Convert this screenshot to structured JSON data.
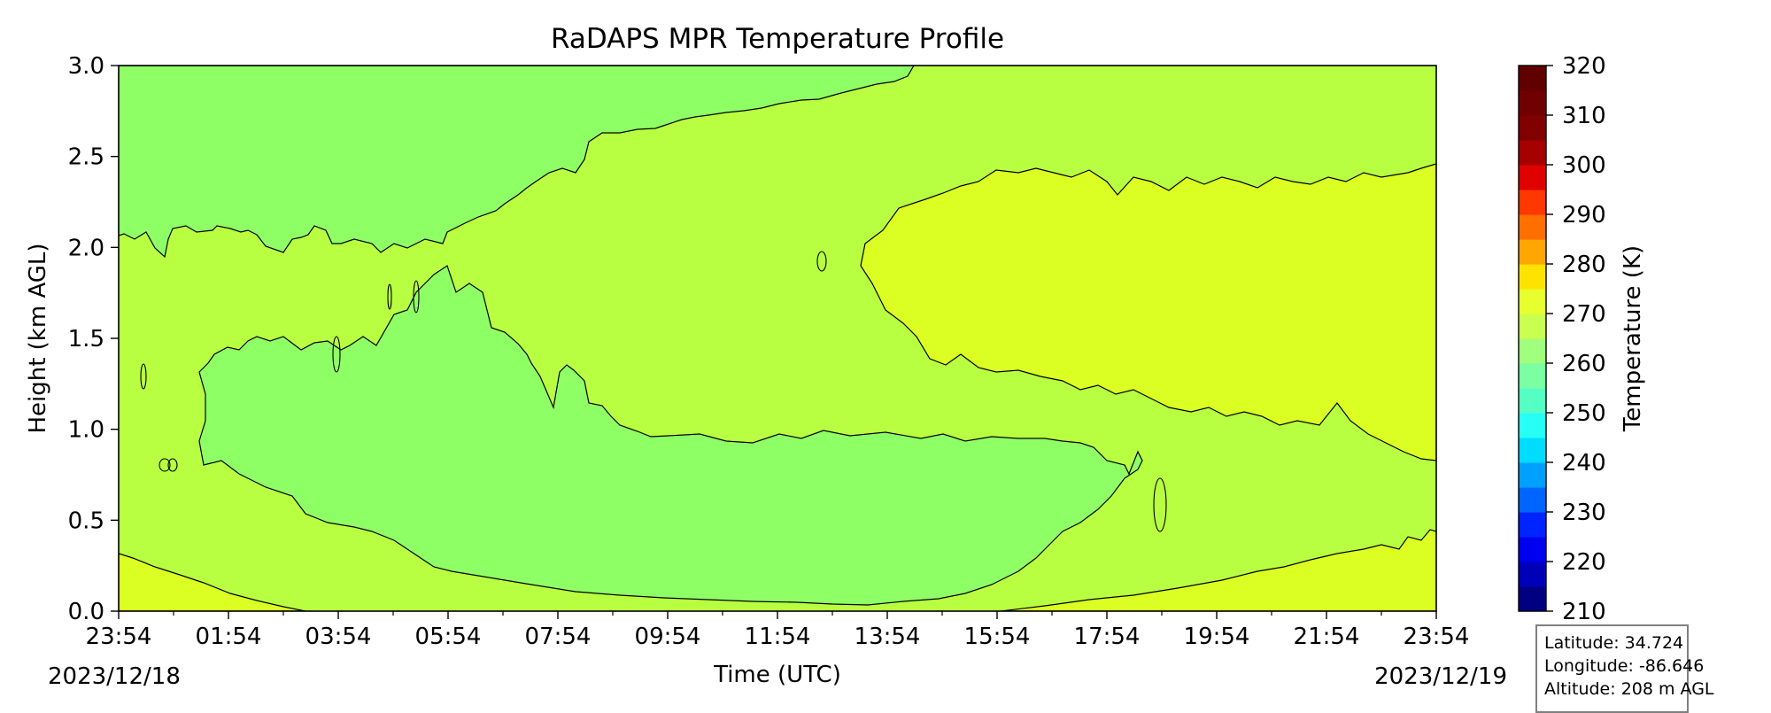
{
  "chart_data": {
    "type": "heatmap",
    "title": "RaDAPS MPR Temperature Profile",
    "xlabel": "Time (UTC)",
    "ylabel": "Height (km AGL)",
    "x_ticks": [
      "23:54",
      "01:54",
      "03:54",
      "05:54",
      "07:54",
      "09:54",
      "11:54",
      "13:54",
      "15:54",
      "17:54",
      "19:54",
      "21:54",
      "23:54"
    ],
    "x_start_date": "2023/12/18",
    "x_end_date": "2023/12/19",
    "y_ticks": [
      "0.0",
      "0.5",
      "1.0",
      "1.5",
      "2.0",
      "2.5",
      "3.0"
    ],
    "ylim": [
      0,
      3.0
    ],
    "colorbar": {
      "label": "Temperature (K)",
      "ticks": [
        "210",
        "220",
        "230",
        "240",
        "250",
        "260",
        "270",
        "280",
        "290",
        "300",
        "310",
        "320"
      ],
      "range": [
        210,
        320
      ],
      "level_step": 5,
      "level_colors": [
        "#000080",
        "#0000b8",
        "#0000f1",
        "#0024ff",
        "#0064ff",
        "#00a0ff",
        "#00dcfe",
        "#25fff5",
        "#55ffc3",
        "#7affa3",
        "#a0ff7d",
        "#c9ff50",
        "#e8ff2e",
        "#fee300",
        "#ffa700",
        "#ff6f00",
        "#ff3800",
        "#e10000",
        "#a60000",
        "#800000",
        "#700000",
        "#600000"
      ]
    },
    "temperature_bands": [
      {
        "range_K": [
          265,
          270
        ],
        "color": "#8fff66",
        "description": "upper-left layer and low-level inversion layer"
      },
      {
        "range_K": [
          270,
          275
        ],
        "color": "#b9ff41",
        "description": "background"
      },
      {
        "range_K": [
          275,
          280
        ],
        "color": "#dbff22",
        "description": "surface and elevated warm layer"
      }
    ]
  },
  "info_box": {
    "latitude": "Latitude: 34.724",
    "longitude": "Longitude: -86.646",
    "altitude": "Altitude: 208 m AGL"
  }
}
